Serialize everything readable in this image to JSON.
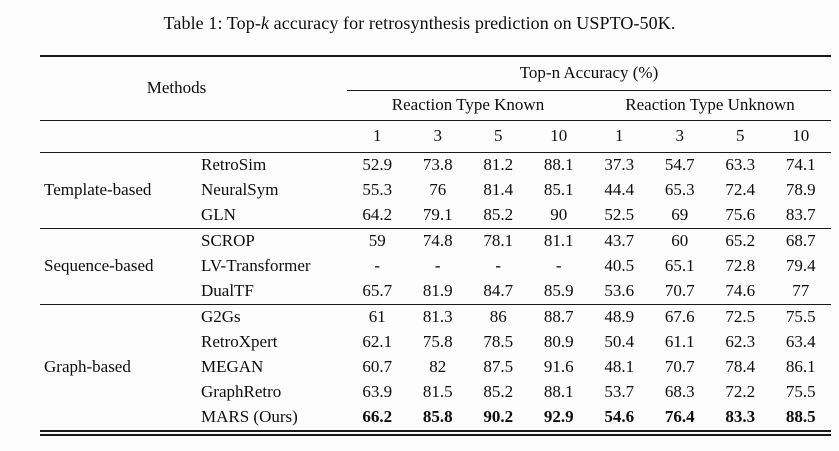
{
  "title": {
    "prefix": "Table 1: Top-",
    "k": "k",
    "suffix": " accuracy for retrosynthesis prediction on USPTO-50K."
  },
  "table": {
    "methods_header": "Methods",
    "top_header": "Top-n Accuracy (%)",
    "group_headers": [
      "Reaction Type Known",
      "Reaction Type Unknown"
    ],
    "subheaders": [
      "1",
      "3",
      "5",
      "10",
      "1",
      "3",
      "5",
      "10"
    ],
    "groups": [
      {
        "category": "Template-based",
        "rows": [
          {
            "method": "RetroSim",
            "bold": false,
            "values": [
              "52.9",
              "73.8",
              "81.2",
              "88.1",
              "37.3",
              "54.7",
              "63.3",
              "74.1"
            ]
          },
          {
            "method": "NeuralSym",
            "bold": false,
            "values": [
              "55.3",
              "76",
              "81.4",
              "85.1",
              "44.4",
              "65.3",
              "72.4",
              "78.9"
            ]
          },
          {
            "method": "GLN",
            "bold": false,
            "values": [
              "64.2",
              "79.1",
              "85.2",
              "90",
              "52.5",
              "69",
              "75.6",
              "83.7"
            ]
          }
        ]
      },
      {
        "category": "Sequence-based",
        "rows": [
          {
            "method": "SCROP",
            "bold": false,
            "values": [
              "59",
              "74.8",
              "78.1",
              "81.1",
              "43.7",
              "60",
              "65.2",
              "68.7"
            ]
          },
          {
            "method": "LV-Transformer",
            "bold": false,
            "values": [
              "-",
              "-",
              "-",
              "-",
              "40.5",
              "65.1",
              "72.8",
              "79.4"
            ]
          },
          {
            "method": "DualTF",
            "bold": false,
            "values": [
              "65.7",
              "81.9",
              "84.7",
              "85.9",
              "53.6",
              "70.7",
              "74.6",
              "77"
            ]
          }
        ]
      },
      {
        "category": "Graph-based",
        "rows": [
          {
            "method": "G2Gs",
            "bold": false,
            "values": [
              "61",
              "81.3",
              "86",
              "88.7",
              "48.9",
              "67.6",
              "72.5",
              "75.5"
            ]
          },
          {
            "method": "RetroXpert",
            "bold": false,
            "values": [
              "62.1",
              "75.8",
              "78.5",
              "80.9",
              "50.4",
              "61.1",
              "62.3",
              "63.4"
            ]
          },
          {
            "method": "MEGAN",
            "bold": false,
            "values": [
              "60.7",
              "82",
              "87.5",
              "91.6",
              "48.1",
              "70.7",
              "78.4",
              "86.1"
            ]
          },
          {
            "method": "GraphRetro",
            "bold": false,
            "values": [
              "63.9",
              "81.5",
              "85.2",
              "88.1",
              "53.7",
              "68.3",
              "72.2",
              "75.5"
            ]
          },
          {
            "method": "MARS (Ours)",
            "bold": true,
            "values": [
              "66.2",
              "85.8",
              "90.2",
              "92.9",
              "54.6",
              "76.4",
              "83.3",
              "88.5"
            ]
          }
        ]
      }
    ]
  }
}
